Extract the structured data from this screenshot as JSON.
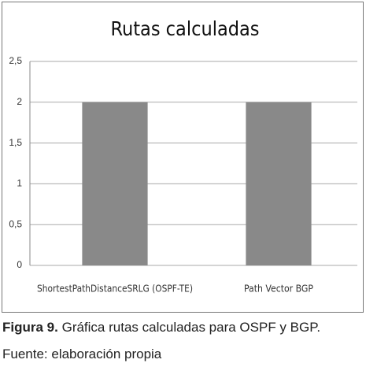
{
  "chart_data": {
    "type": "bar",
    "title": "Rutas calculadas",
    "categories": [
      "ShortestPathDistanceSRLG (OSPF-TE)",
      "Path Vector BGP"
    ],
    "values": [
      2,
      2
    ],
    "color": "#898989",
    "ylim": [
      0,
      2.5
    ],
    "yticks": [
      0,
      {
        "value": 0.5,
        "label": "0,5"
      },
      1,
      {
        "value": 1.5,
        "label": "1,5"
      },
      2,
      {
        "value": 2.5,
        "label": "2,5"
      }
    ],
    "grid": true
  },
  "caption": {
    "label": "Figura 9.",
    "text": "Gráfica rutas calculadas para OSPF y BGP.",
    "source": "Fuente: elaboración propia"
  }
}
